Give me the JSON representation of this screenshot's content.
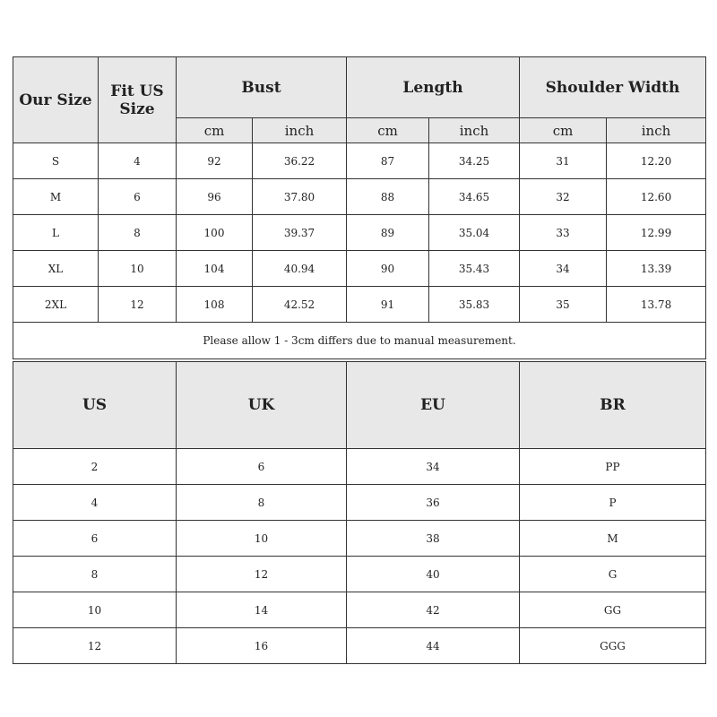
{
  "size_table": {
    "headers": {
      "our_size": "Our Size",
      "fit_us": "Fit US Size",
      "bust": "Bust",
      "length": "Length",
      "shoulder": "Shoulder Width"
    },
    "units": [
      "cm",
      "inch",
      "cm",
      "inch",
      "cm",
      "inch"
    ],
    "rows": [
      [
        "S",
        "4",
        "92",
        "36.22",
        "87",
        "34.25",
        "31",
        "12.20"
      ],
      [
        "M",
        "6",
        "96",
        "37.80",
        "88",
        "34.65",
        "32",
        "12.60"
      ],
      [
        "L",
        "8",
        "100",
        "39.37",
        "89",
        "35.04",
        "33",
        "12.99"
      ],
      [
        "XL",
        "10",
        "104",
        "40.94",
        "90",
        "35.43",
        "34",
        "13.39"
      ],
      [
        "2XL",
        "12",
        "108",
        "42.52",
        "91",
        "35.83",
        "35",
        "13.78"
      ]
    ],
    "note": "Please allow 1 - 3cm differs due to manual measurement."
  },
  "conversion_table": {
    "headers": [
      "US",
      "UK",
      "EU",
      "BR"
    ],
    "rows": [
      [
        "2",
        "6",
        "34",
        "PP"
      ],
      [
        "4",
        "8",
        "36",
        "P"
      ],
      [
        "6",
        "10",
        "38",
        "M"
      ],
      [
        "8",
        "12",
        "40",
        "G"
      ],
      [
        "10",
        "14",
        "42",
        "GG"
      ],
      [
        "12",
        "16",
        "44",
        "GGG"
      ]
    ]
  }
}
